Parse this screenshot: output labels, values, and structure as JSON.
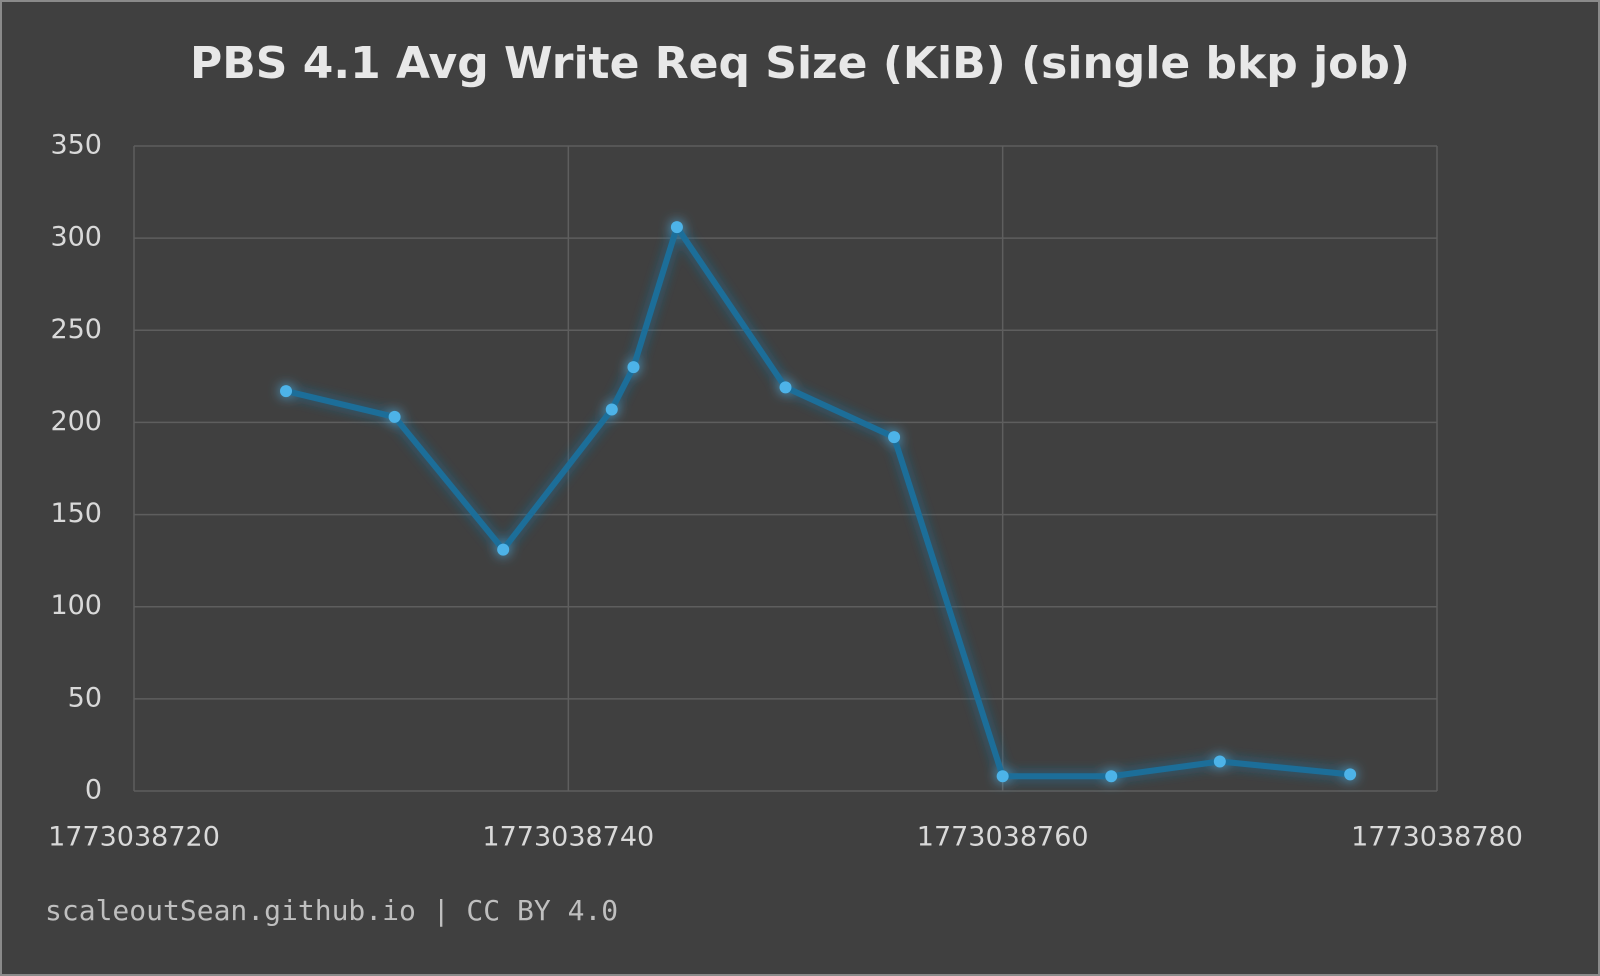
{
  "chart_data": {
    "type": "line",
    "title": "PBS 4.1 Avg Write Req Size (KiB) (single bkp job)",
    "x": [
      1773038727,
      1773038732,
      1773038737,
      1773038742,
      1773038743,
      1773038745,
      1773038750,
      1773038755,
      1773038760,
      1773038765,
      1773038770,
      1773038776
    ],
    "series": [
      {
        "name": "Avg Write Req Size (KiB)",
        "color": "#1f6e99",
        "marker_color": "#4db3e8",
        "values": [
          217,
          203,
          131,
          207,
          230,
          306,
          219,
          192,
          8,
          8,
          16,
          9
        ]
      }
    ],
    "xlim": [
      1773038720,
      1773038780
    ],
    "xticks": [
      1773038720,
      1773038740,
      1773038760,
      1773038780
    ],
    "ylim": [
      0,
      350
    ],
    "yticks": [
      0,
      50,
      100,
      150,
      200,
      250,
      300,
      350
    ],
    "grid": true,
    "source": "scaleoutSean.github.io | CC BY 4.0"
  }
}
